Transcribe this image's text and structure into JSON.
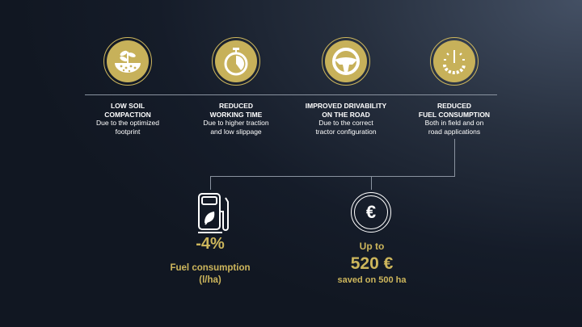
{
  "features": [
    {
      "title1": "LOW SOIL",
      "title2": "COMPACTION",
      "desc1": "Due to the optimized",
      "desc2": "footprint",
      "icon": "plant-soil-icon"
    },
    {
      "title1": "REDUCED",
      "title2": "WORKING TIME",
      "desc1": "Due to higher traction",
      "desc2": "and low slippage",
      "icon": "stopwatch-icon"
    },
    {
      "title1": "IMPROVED DRIVABILITY",
      "title2": "ON THE ROAD",
      "desc1": "Due to the correct",
      "desc2": "tractor configuration",
      "icon": "steering-wheel-icon"
    },
    {
      "title1": "REDUCED",
      "title2": "FUEL CONSUMPTION",
      "desc1": "Both in field and on",
      "desc2": "road applications",
      "icon": "fuel-gauge-gear-icon"
    }
  ],
  "fuel": {
    "value": "-4%",
    "label1": "Fuel consumption",
    "label2": "(l/ha)",
    "icon": "fuel-pump-leaf-icon"
  },
  "savings": {
    "prefix": "Up to",
    "value": "520 €",
    "label": "saved on 500 ha",
    "icon": "euro-coin-icon"
  },
  "colors": {
    "gold": "#c7b15a",
    "background": "#151c29"
  }
}
